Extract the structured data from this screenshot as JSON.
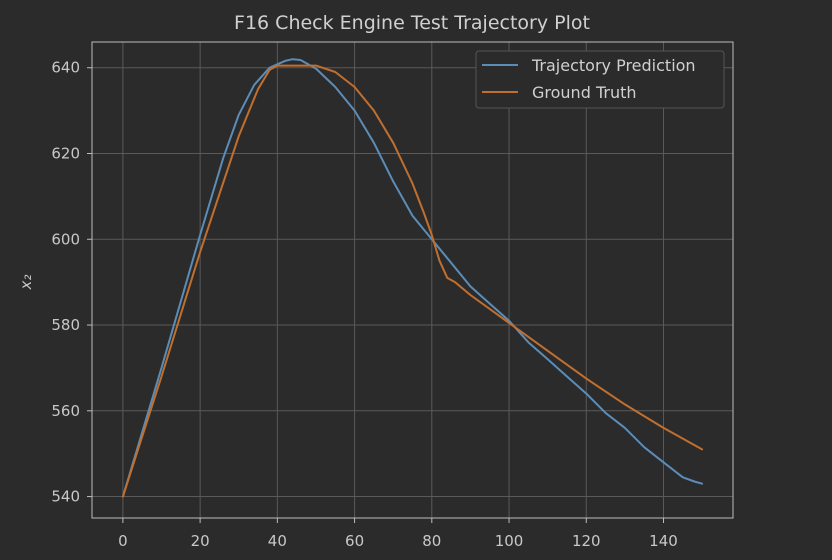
{
  "chart_data": {
    "type": "line",
    "title": "F16 Check Engine Test Trajectory Plot",
    "xlabel": "",
    "ylabel": "x₂",
    "xlim": [
      -8,
      158
    ],
    "ylim": [
      535,
      646
    ],
    "xticks": [
      "0",
      "20",
      "40",
      "60",
      "80",
      "100",
      "120",
      "140"
    ],
    "xtick_values": [
      0,
      20,
      40,
      60,
      80,
      100,
      120,
      140
    ],
    "yticks": [
      "540",
      "560",
      "580",
      "600",
      "620",
      "640"
    ],
    "ytick_values": [
      540,
      560,
      580,
      600,
      620,
      640
    ],
    "grid": true,
    "legend_position": "top-right",
    "colors": {
      "background": "#2b2b2b",
      "grid": "#5a5a5a",
      "spine": "#bdbdbd"
    },
    "series": [
      {
        "name": "Trajectory Prediction",
        "color": "#5b8db8",
        "x": [
          0,
          10,
          20,
          26,
          30,
          34,
          38,
          42,
          44,
          46,
          50,
          55,
          60,
          65,
          70,
          75,
          80,
          85,
          90,
          95,
          100,
          105,
          110,
          115,
          120,
          125,
          130,
          135,
          140,
          145,
          148,
          150
        ],
        "y": [
          540,
          570,
          601,
          619,
          629,
          636,
          640,
          641.6,
          642,
          641.8,
          639.8,
          635.5,
          630,
          622.5,
          613.5,
          605.5,
          600,
          594.5,
          589,
          585,
          581,
          576,
          572,
          568,
          564,
          559.5,
          556,
          551.5,
          548,
          544.5,
          543.5,
          543
        ]
      },
      {
        "name": "Ground Truth",
        "color": "#c16f2f",
        "x": [
          0,
          10,
          20,
          30,
          35,
          38,
          40,
          45,
          50,
          55,
          60,
          65,
          70,
          75,
          78,
          80,
          82,
          84,
          86,
          90,
          100,
          110,
          120,
          130,
          140,
          150
        ],
        "y": [
          540,
          568,
          597,
          624,
          635,
          639.5,
          640.5,
          640.5,
          640.5,
          639,
          635.5,
          630,
          622.5,
          613,
          606,
          601,
          595,
          591,
          590,
          587,
          580.5,
          574,
          567.5,
          561.5,
          556,
          551
        ]
      }
    ]
  }
}
